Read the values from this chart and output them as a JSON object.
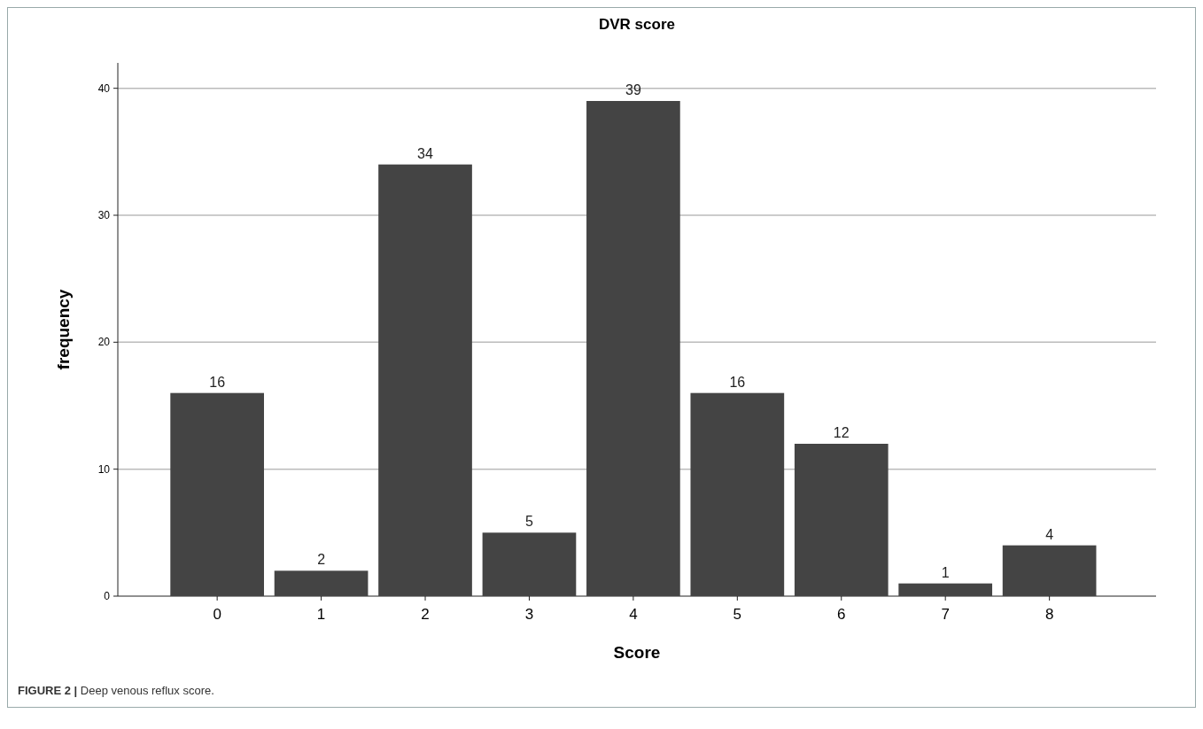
{
  "chart_data": {
    "type": "bar",
    "title": "DVR score",
    "xlabel": "Score",
    "ylabel": "frequency",
    "categories": [
      "0",
      "1",
      "2",
      "3",
      "4",
      "5",
      "6",
      "7",
      "8"
    ],
    "values": [
      16,
      2,
      34,
      5,
      39,
      16,
      12,
      1,
      4
    ],
    "color": "#444444",
    "ylim": [
      0,
      42
    ],
    "yticks": [
      0,
      10,
      20,
      30,
      40
    ],
    "grid": "y",
    "data_labels": true,
    "annotations": [
      "FIGURE 2 | Deep venous reflux score."
    ]
  }
}
